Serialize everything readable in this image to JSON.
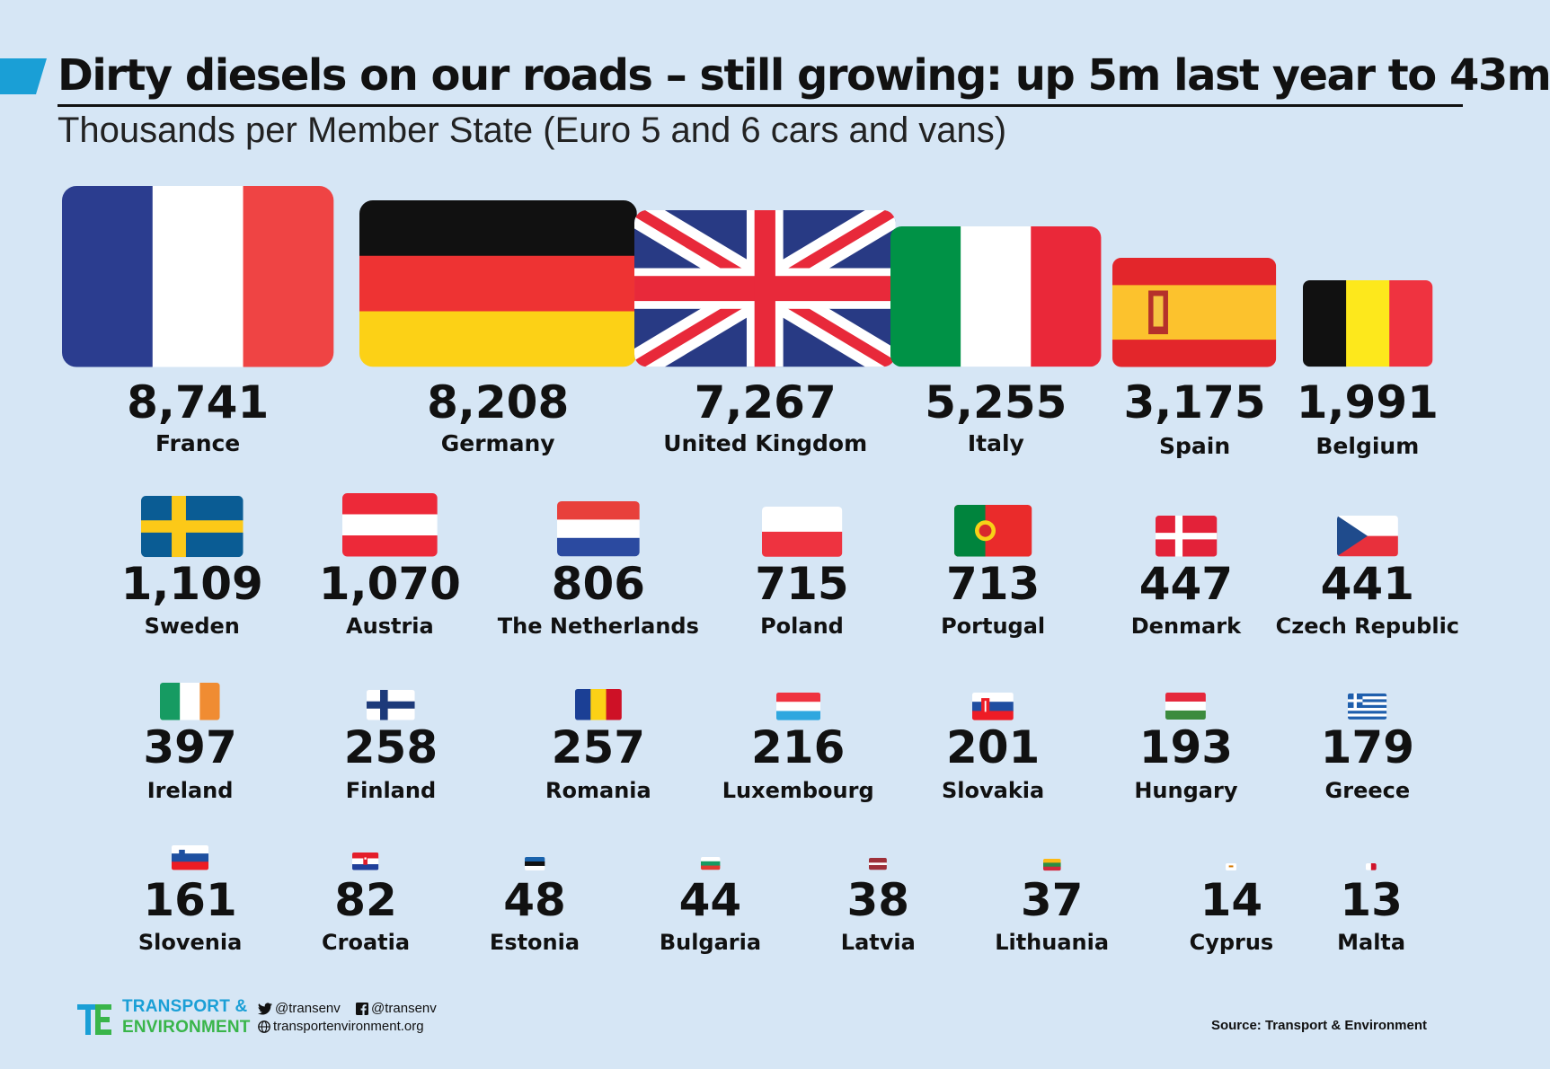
{
  "header": {
    "title": "Dirty diesels on our roads – still growing: up 5m last year to 43m",
    "subtitle": "Thousands per Member State (Euro 5 and 6 cars and vans)"
  },
  "colors": {
    "background": "#d6e6f5",
    "accent": "#1a9fd6",
    "accent_green": "#39b54a"
  },
  "chart_data": {
    "type": "bar",
    "title": "Dirty diesels on our roads – still growing: up 5m last year to 43m",
    "subtitle": "Thousands per Member State (Euro 5 and 6 cars and vans)",
    "encoding": "flag area proportional to value",
    "categories": [
      "France",
      "Germany",
      "United Kingdom",
      "Italy",
      "Spain",
      "Belgium",
      "Sweden",
      "Austria",
      "The Netherlands",
      "Poland",
      "Portugal",
      "Denmark",
      "Czech Republic",
      "Ireland",
      "Finland",
      "Romania",
      "Luxembourg",
      "Slovakia",
      "Hungary",
      "Greece",
      "Slovenia",
      "Croatia",
      "Estonia",
      "Bulgaria",
      "Latvia",
      "Lithuania",
      "Cyprus",
      "Malta"
    ],
    "values": [
      8741,
      8208,
      7267,
      5255,
      3175,
      1991,
      1109,
      1070,
      806,
      715,
      713,
      447,
      441,
      397,
      258,
      257,
      216,
      201,
      193,
      179,
      161,
      82,
      48,
      44,
      38,
      37,
      14,
      13
    ],
    "value_labels": [
      "8,741",
      "8,208",
      "7,267",
      "5,255",
      "3,175",
      "1,991",
      "1,109",
      "1,070",
      "806",
      "715",
      "713",
      "447",
      "441",
      "397",
      "258",
      "257",
      "216",
      "201",
      "193",
      "179",
      "161",
      "82",
      "48",
      "44",
      "38",
      "37",
      "14",
      "13"
    ],
    "flags": [
      "france-flag-icon",
      "germany-flag-icon",
      "uk-flag-icon",
      "italy-flag-icon",
      "spain-flag-icon",
      "belgium-flag-icon",
      "sweden-flag-icon",
      "austria-flag-icon",
      "netherlands-flag-icon",
      "poland-flag-icon",
      "portugal-flag-icon",
      "denmark-flag-icon",
      "czech-flag-icon",
      "ireland-flag-icon",
      "finland-flag-icon",
      "romania-flag-icon",
      "luxembourg-flag-icon",
      "slovakia-flag-icon",
      "hungary-flag-icon",
      "greece-flag-icon",
      "slovenia-flag-icon",
      "croatia-flag-icon",
      "estonia-flag-icon",
      "bulgaria-flag-icon",
      "latvia-flag-icon",
      "lithuania-flag-icon",
      "cyprus-flag-icon",
      "malta-flag-icon"
    ]
  },
  "footer": {
    "logo_line1": "TRANSPORT &",
    "logo_line2": "ENVIRONMENT",
    "twitter": "@transenv",
    "facebook": "@transenv",
    "website": "transportenvironment.org",
    "source": "Source: Transport & Environment"
  }
}
